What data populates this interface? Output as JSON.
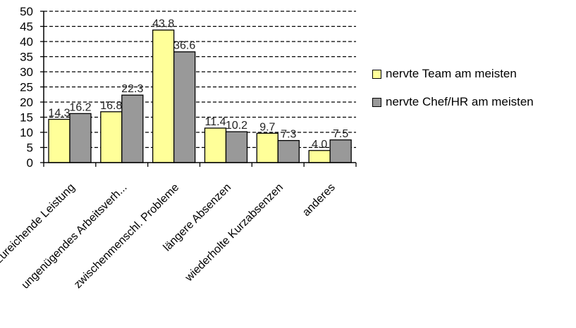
{
  "chart_data": {
    "type": "bar",
    "categories": [
      "unzureichende Leistung",
      "ungenügendes Arbeitsverh...",
      "zwischenmenschl. Probleme",
      "längere Absenzen",
      "wiederholte Kurzabsenzen",
      "anderes"
    ],
    "series": [
      {
        "name": "nervte Team am meisten",
        "values": [
          14.3,
          16.8,
          43.8,
          11.4,
          9.7,
          4.0
        ],
        "labels": [
          "14.3",
          "16.8",
          "43.8",
          "11.4",
          "9.7",
          "4.0"
        ],
        "color": "#ffff99"
      },
      {
        "name": "nervte Chef/HR am meisten",
        "values": [
          16.2,
          22.3,
          36.6,
          10.2,
          7.3,
          7.5
        ],
        "labels": [
          "16.2",
          "22.3",
          "36.6",
          "10.2",
          "7.3",
          "7.5"
        ],
        "color": "#999999"
      }
    ],
    "ylim": [
      0,
      50
    ],
    "yticks": [
      0,
      5,
      10,
      15,
      20,
      25,
      30,
      35,
      40,
      45,
      50
    ],
    "grid": "dashed-horizontal",
    "legend_position": "right"
  }
}
